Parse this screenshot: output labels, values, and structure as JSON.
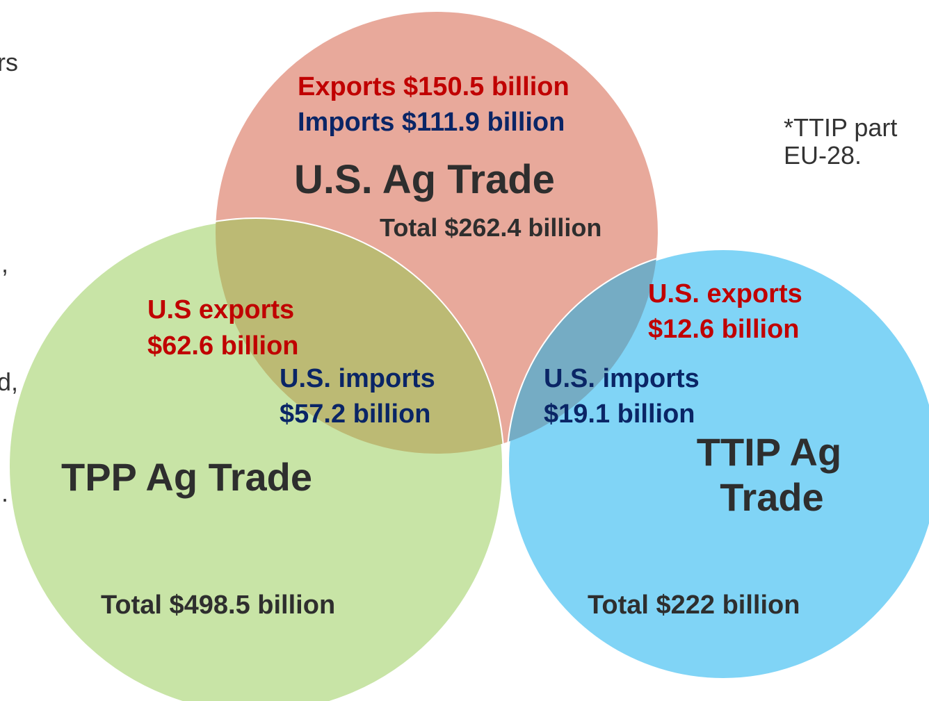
{
  "side_text_fragments": [
    "rs",
    ",",
    "d,",
    "."
  ],
  "note": [
    "*TTIP part",
    "EU-28."
  ],
  "circles": [
    {
      "label": "U.S. Ag Trade",
      "exports": "Exports $150.5 billion",
      "imports": "Imports $111.9 billion",
      "total": "Total $262.4 billion"
    },
    {
      "label": "TPP Ag Trade",
      "total": "Total $498.5 billion"
    },
    {
      "label_lines": [
        "TTIP Ag",
        "Trade"
      ],
      "total": "Total $222 billion"
    }
  ],
  "overlaps": [
    {
      "exports": [
        "U.S exports",
        "$62.6 billion"
      ],
      "imports": [
        "U.S. imports",
        "$57.2 billion"
      ]
    },
    {
      "exports": [
        "U.S. exports",
        "$12.6 billion"
      ],
      "imports": [
        "U.S. imports",
        "$19.1 billion"
      ]
    }
  ]
}
